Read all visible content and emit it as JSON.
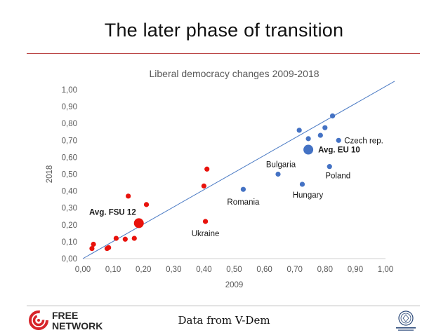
{
  "slide": {
    "title": "The later phase of transition",
    "footer_source": "Data from V-Dem"
  },
  "logo": {
    "line1": "FREE",
    "line2": "NETWORK"
  },
  "colors": {
    "accent_red": "#e8120c",
    "series_blue": "#4472c4",
    "rule_red": "#b73a3a"
  },
  "chart_data": {
    "type": "scatter",
    "title": "Liberal democracy changes 2009-2018",
    "xlabel": "2009",
    "ylabel": "2018",
    "xlim": [
      0,
      1
    ],
    "ylim": [
      0,
      1
    ],
    "xticks": [
      "0,00",
      "0,10",
      "0,20",
      "0,30",
      "0,40",
      "0,50",
      "0,60",
      "0,70",
      "0,80",
      "0,90",
      "1,00"
    ],
    "yticks": [
      "0,00",
      "0,10",
      "0,20",
      "0,30",
      "0,40",
      "0,50",
      "0,60",
      "0,70",
      "0,80",
      "0,90",
      "1,00"
    ],
    "grid": false,
    "trend_line": {
      "from": [
        0,
        0
      ],
      "to": [
        1.03,
        1.05
      ]
    },
    "series": [
      {
        "color": "#e8120c",
        "points": [
          {
            "x": 0.03,
            "y": 0.06
          },
          {
            "x": 0.035,
            "y": 0.085
          },
          {
            "x": 0.08,
            "y": 0.06
          },
          {
            "x": 0.085,
            "y": 0.065
          },
          {
            "x": 0.11,
            "y": 0.12
          },
          {
            "x": 0.14,
            "y": 0.115
          },
          {
            "x": 0.15,
            "y": 0.37
          },
          {
            "x": 0.17,
            "y": 0.12
          },
          {
            "x": 0.21,
            "y": 0.32
          },
          {
            "x": 0.4,
            "y": 0.43
          },
          {
            "x": 0.41,
            "y": 0.53
          },
          {
            "x": 0.405,
            "y": 0.22,
            "label": "Ukraine"
          },
          {
            "x": 0.185,
            "y": 0.21,
            "label": "Avg. FSU 12",
            "highlight": true
          }
        ]
      },
      {
        "color": "#4472c4",
        "points": [
          {
            "x": 0.53,
            "y": 0.41,
            "label": "Romania"
          },
          {
            "x": 0.645,
            "y": 0.5,
            "label": "Bulgaria"
          },
          {
            "x": 0.725,
            "y": 0.44,
            "label": "Hungary"
          },
          {
            "x": 0.715,
            "y": 0.76
          },
          {
            "x": 0.745,
            "y": 0.71
          },
          {
            "x": 0.785,
            "y": 0.73
          },
          {
            "x": 0.8,
            "y": 0.775
          },
          {
            "x": 0.825,
            "y": 0.845
          },
          {
            "x": 0.815,
            "y": 0.545,
            "label": "Poland"
          },
          {
            "x": 0.845,
            "y": 0.7,
            "label": "Czech rep."
          },
          {
            "x": 0.745,
            "y": 0.645,
            "label": "Avg. EU 10",
            "highlight": true
          }
        ]
      }
    ]
  }
}
